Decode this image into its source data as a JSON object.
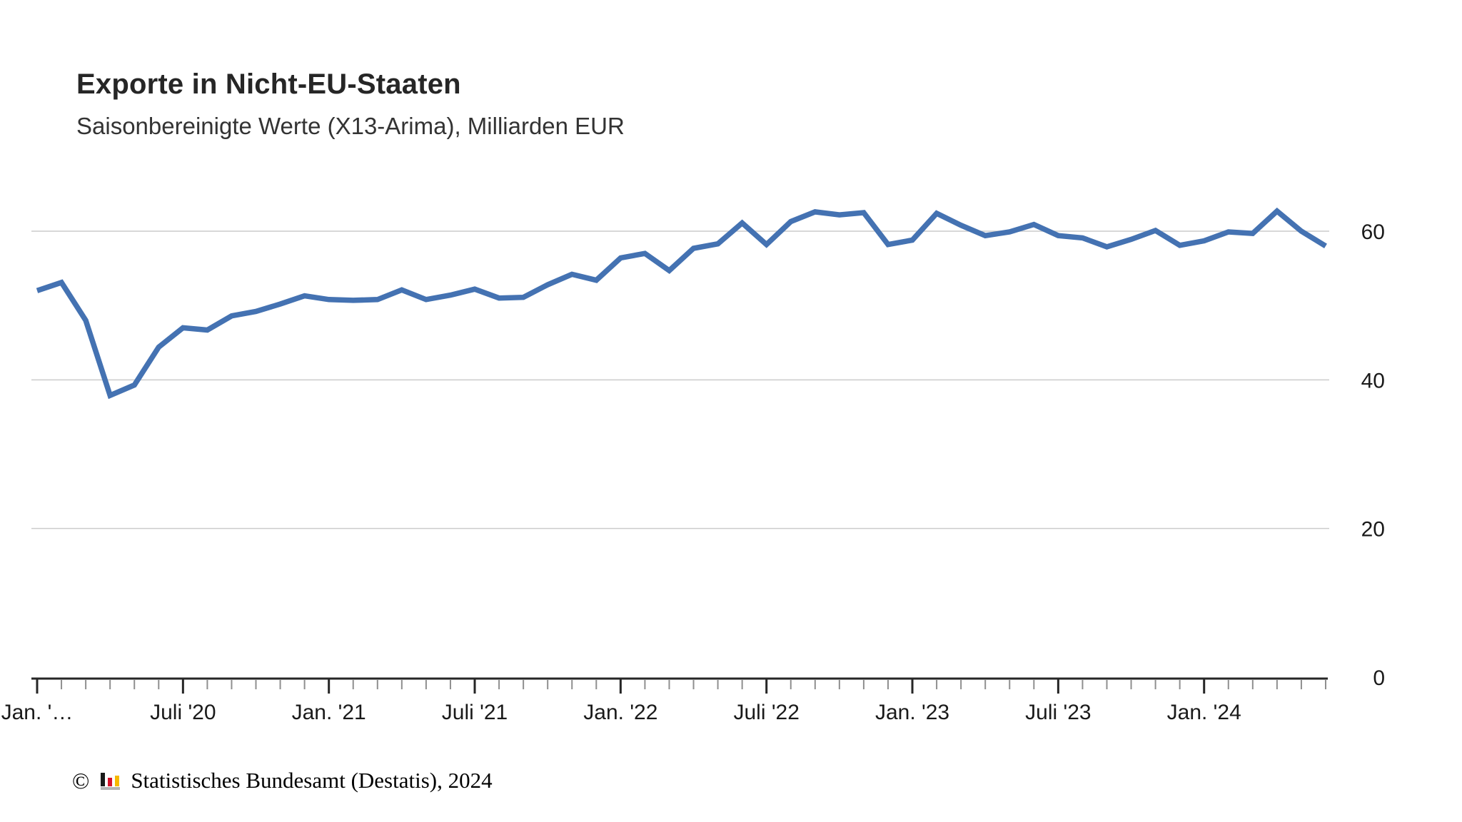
{
  "header": {
    "title": "Exporte in Nicht-EU-Staaten",
    "subtitle": "Saisonbereinigte Werte (X13-Arima), Milliarden EUR"
  },
  "chart_data": {
    "type": "line",
    "title": "Exporte in Nicht-EU-Staaten",
    "subtitle": "Saisonbereinigte Werte (X13-Arima), Milliarden EUR",
    "ylabel": "Milliarden EUR",
    "xlabel": "",
    "x": [
      "Jan. 2020",
      "Feb. 2020",
      "März 2020",
      "Apr. 2020",
      "Mai 2020",
      "Juni 2020",
      "Juli 2020",
      "Aug. 2020",
      "Sep. 2020",
      "Okt. 2020",
      "Nov. 2020",
      "Dez. 2020",
      "Jan. 2021",
      "Feb. 2021",
      "März 2021",
      "Apr. 2021",
      "Mai 2021",
      "Juni 2021",
      "Juli 2021",
      "Aug. 2021",
      "Sep. 2021",
      "Okt. 2021",
      "Nov. 2021",
      "Dez. 2021",
      "Jan. 2022",
      "Feb. 2022",
      "März 2022",
      "Apr. 2022",
      "Mai 2022",
      "Juni 2022",
      "Juli 2022",
      "Aug. 2022",
      "Sep. 2022",
      "Okt. 2022",
      "Nov. 2022",
      "Dez. 2022",
      "Jan. 2023",
      "Feb. 2023",
      "März 2023",
      "Apr. 2023",
      "Mai 2023",
      "Juni 2023",
      "Juli 2023",
      "Aug. 2023",
      "Sep. 2023",
      "Okt. 2023",
      "Nov. 2023",
      "Dez. 2023",
      "Jan. 2024",
      "Feb. 2024",
      "März 2024",
      "Apr. 2024",
      "Mai 2024",
      "Juni 2024"
    ],
    "series": [
      {
        "name": "Exporte in Nicht-EU-Staaten, saisonbereinigt",
        "values": [
          52.0,
          53.1,
          48.0,
          37.9,
          39.3,
          44.4,
          47.0,
          46.7,
          48.6,
          49.2,
          50.2,
          51.3,
          50.8,
          50.7,
          50.8,
          52.1,
          50.8,
          51.4,
          52.2,
          51.0,
          51.1,
          52.8,
          54.2,
          53.4,
          56.4,
          57.0,
          54.7,
          57.7,
          58.3,
          61.1,
          58.2,
          61.3,
          62.6,
          62.2,
          62.5,
          58.2,
          58.8,
          62.4,
          60.8,
          59.4,
          59.9,
          60.9,
          59.4,
          59.1,
          57.9,
          58.9,
          60.1,
          58.1,
          58.7,
          59.9,
          59.7,
          62.7,
          60.0,
          58.0
        ]
      }
    ],
    "x_tick_labels": [
      {
        "index": 0,
        "label": "Jan. '…"
      },
      {
        "index": 6,
        "label": "Juli '20"
      },
      {
        "index": 12,
        "label": "Jan. '21"
      },
      {
        "index": 18,
        "label": "Juli '21"
      },
      {
        "index": 24,
        "label": "Jan. '22"
      },
      {
        "index": 30,
        "label": "Juli '22"
      },
      {
        "index": 36,
        "label": "Jan. '23"
      },
      {
        "index": 42,
        "label": "Juli '23"
      },
      {
        "index": 48,
        "label": "Jan. '24"
      }
    ],
    "minor_ticks": "monthly",
    "major_tick_every": 6,
    "y_ticks": [
      0,
      20,
      40,
      60
    ],
    "ylim": [
      0,
      65
    ],
    "y_axis_side": "right",
    "grid": "horizontal",
    "legend": "none"
  },
  "colors": {
    "line": "#4472b2",
    "gridline": "#cbcbcb",
    "axis": "#262626",
    "minor_tick": "#8f8f8f",
    "major_tick": "#262626",
    "tick_label": "#1a1a1a",
    "title": "#262626",
    "subtitle": "#333333",
    "logo_black": "#1a1a1a",
    "logo_red": "#d5122b",
    "logo_yellow": "#f6b800",
    "logo_base_gray": "#b3b3b3"
  },
  "footer": {
    "copyright_symbol": "©",
    "logo": "destatis-bar-chart-logo",
    "source": "Statistisches Bundesamt (Destatis), 2024"
  }
}
